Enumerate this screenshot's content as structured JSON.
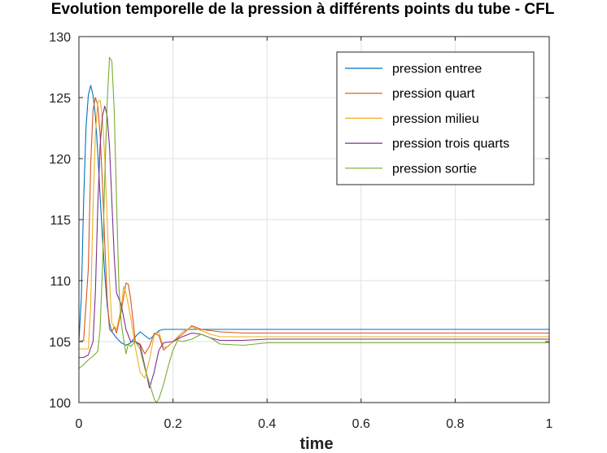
{
  "chart_data": {
    "type": "line",
    "title": "Evolution temporelle de la pression à différents points du tube - CFL",
    "xlabel": "time",
    "ylabel": "",
    "xlim": [
      0,
      1
    ],
    "ylim": [
      100,
      130
    ],
    "xticks": [
      0,
      0.2,
      0.4,
      0.6,
      0.8,
      1
    ],
    "xtick_labels": [
      "0",
      "0.2",
      "0.4",
      "0.6",
      "0.8",
      "1"
    ],
    "yticks": [
      100,
      105,
      110,
      115,
      120,
      125,
      130
    ],
    "ytick_labels": [
      "100",
      "105",
      "110",
      "115",
      "120",
      "125",
      "130"
    ],
    "grid": true,
    "legend_position": "top-right",
    "series": [
      {
        "name": "pression entree",
        "color": "#0072bd",
        "x": [
          0,
          0.005,
          0.01,
          0.015,
          0.02,
          0.025,
          0.03,
          0.035,
          0.04,
          0.045,
          0.05,
          0.055,
          0.06,
          0.065,
          0.07,
          0.08,
          0.09,
          0.1,
          0.11,
          0.12,
          0.13,
          0.14,
          0.15,
          0.16,
          0.17,
          0.18,
          0.2,
          0.22,
          0.25,
          0.3,
          0.35,
          0.4,
          0.5,
          1.0
        ],
        "y": [
          105.0,
          108.5,
          116.5,
          122.5,
          125.2,
          126.0,
          125.2,
          123.5,
          120.5,
          117.0,
          113.5,
          110.5,
          108.0,
          106.5,
          105.8,
          105.3,
          104.9,
          104.7,
          104.9,
          105.4,
          105.8,
          105.5,
          105.2,
          105.5,
          105.9,
          106.0,
          106.0,
          106.0,
          106.0,
          106.0,
          106.0,
          106.0,
          106.0,
          106.0
        ]
      },
      {
        "name": "pression quart",
        "color": "#d95319",
        "x": [
          0,
          0.01,
          0.02,
          0.025,
          0.03,
          0.035,
          0.04,
          0.045,
          0.05,
          0.055,
          0.06,
          0.065,
          0.07,
          0.075,
          0.08,
          0.09,
          0.1,
          0.105,
          0.11,
          0.12,
          0.13,
          0.14,
          0.15,
          0.16,
          0.17,
          0.18,
          0.2,
          0.22,
          0.24,
          0.26,
          0.3,
          0.35,
          0.4,
          0.5,
          1.0
        ],
        "y": [
          105.0,
          105.1,
          111.0,
          119.5,
          124.0,
          125.0,
          124.4,
          122.0,
          118.0,
          113.0,
          108.5,
          106.0,
          105.8,
          106.2,
          105.7,
          107.5,
          109.8,
          109.7,
          108.5,
          105.0,
          104.8,
          104.0,
          104.6,
          105.7,
          105.5,
          104.3,
          105.0,
          105.6,
          106.3,
          106.0,
          105.8,
          105.7,
          105.7,
          105.7,
          105.7
        ]
      },
      {
        "name": "pression milieu",
        "color": "#edb120",
        "x": [
          0,
          0.02,
          0.025,
          0.03,
          0.035,
          0.04,
          0.045,
          0.05,
          0.055,
          0.06,
          0.065,
          0.07,
          0.08,
          0.09,
          0.095,
          0.1,
          0.11,
          0.12,
          0.13,
          0.14,
          0.15,
          0.16,
          0.17,
          0.18,
          0.19,
          0.2,
          0.22,
          0.24,
          0.26,
          0.28,
          0.3,
          0.35,
          0.4,
          0.5,
          1.0
        ],
        "y": [
          104.4,
          104.4,
          108.0,
          116.0,
          122.0,
          124.6,
          124.8,
          123.3,
          120.0,
          115.0,
          110.0,
          106.5,
          106.0,
          107.8,
          109.5,
          109.0,
          107.0,
          104.5,
          102.5,
          102.0,
          103.5,
          105.5,
          105.8,
          104.5,
          104.6,
          105.0,
          105.8,
          106.2,
          105.9,
          105.6,
          105.4,
          105.4,
          105.4,
          105.4,
          105.4
        ]
      },
      {
        "name": "pression trois quarts",
        "color": "#7e2f8e",
        "x": [
          0,
          0.01,
          0.02,
          0.03,
          0.035,
          0.04,
          0.045,
          0.05,
          0.055,
          0.06,
          0.065,
          0.07,
          0.075,
          0.08,
          0.09,
          0.1,
          0.11,
          0.12,
          0.13,
          0.14,
          0.15,
          0.16,
          0.17,
          0.18,
          0.2,
          0.22,
          0.24,
          0.26,
          0.28,
          0.3,
          0.35,
          0.4,
          0.5,
          1.0
        ],
        "y": [
          103.7,
          103.7,
          103.9,
          105.0,
          109.0,
          116.0,
          121.0,
          123.5,
          124.3,
          123.5,
          121.0,
          116.5,
          112.0,
          109.0,
          108.0,
          106.0,
          105.0,
          105.0,
          104.7,
          103.0,
          101.2,
          102.5,
          104.3,
          104.9,
          105.0,
          105.4,
          105.7,
          105.6,
          105.3,
          105.1,
          105.1,
          105.2,
          105.2,
          105.2
        ]
      },
      {
        "name": "pression sortie",
        "color": "#77ac30",
        "x": [
          0,
          0.01,
          0.02,
          0.03,
          0.04,
          0.045,
          0.05,
          0.055,
          0.06,
          0.065,
          0.07,
          0.075,
          0.08,
          0.085,
          0.09,
          0.095,
          0.1,
          0.105,
          0.11,
          0.12,
          0.13,
          0.14,
          0.15,
          0.16,
          0.165,
          0.17,
          0.18,
          0.19,
          0.2,
          0.21,
          0.22,
          0.24,
          0.26,
          0.28,
          0.3,
          0.35,
          0.4,
          0.5,
          1.0
        ],
        "y": [
          102.8,
          103.1,
          103.5,
          103.8,
          104.2,
          106.0,
          111.0,
          118.5,
          124.5,
          128.3,
          128.0,
          124.0,
          116.5,
          109.5,
          106.5,
          105.2,
          104.0,
          104.8,
          104.6,
          105.0,
          104.4,
          102.8,
          101.6,
          100.3,
          100.0,
          100.3,
          101.5,
          103.0,
          104.3,
          105.1,
          105.0,
          105.2,
          105.6,
          105.3,
          104.8,
          104.7,
          104.9,
          104.9,
          104.9
        ]
      }
    ]
  }
}
